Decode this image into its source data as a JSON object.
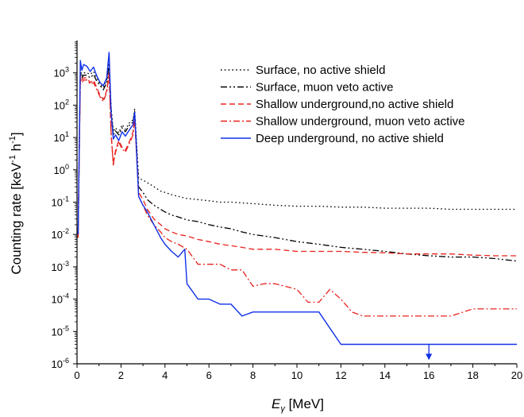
{
  "chart_data": {
    "type": "line",
    "title": "",
    "xlabel": {
      "main": "E",
      "sub": "γ",
      "unit": " [MeV]"
    },
    "ylabel": {
      "prefix": "Counting rate [keV",
      "sup1": "-1",
      "mid": " h",
      "sup2": "-1",
      "suffix": "]"
    },
    "xlim": [
      0,
      20
    ],
    "ylim": [
      1e-06,
      10000
    ],
    "y_scale": "log",
    "x_ticks": [
      0,
      2,
      4,
      6,
      8,
      10,
      12,
      14,
      16,
      18,
      20
    ],
    "x_tick_labels": [
      "0",
      "2",
      "4",
      "6",
      "8",
      "10",
      "12",
      "14",
      "16",
      "18",
      "20"
    ],
    "y_ticks": [
      {
        "value": 1e-06,
        "base": "10",
        "exp": "-6"
      },
      {
        "value": 1e-05,
        "base": "10",
        "exp": "-5"
      },
      {
        "value": 0.0001,
        "base": "10",
        "exp": "-4"
      },
      {
        "value": 0.001,
        "base": "10",
        "exp": "-3"
      },
      {
        "value": 0.01,
        "base": "10",
        "exp": "-2"
      },
      {
        "value": 0.1,
        "base": "10",
        "exp": "-1"
      },
      {
        "value": 1,
        "base": "10",
        "exp": "0"
      },
      {
        "value": 10,
        "base": "10",
        "exp": "1"
      },
      {
        "value": 100,
        "base": "10",
        "exp": "2"
      },
      {
        "value": 1000,
        "base": "10",
        "exp": "3"
      }
    ],
    "grid": false,
    "legend_position": "top-right",
    "series": [
      {
        "name": "Surface, no active shield",
        "color": "#000000",
        "dash": "dotted",
        "x": [
          0.05,
          0.15,
          0.22,
          0.3,
          0.45,
          0.6,
          0.75,
          0.9,
          1.05,
          1.2,
          1.35,
          1.46,
          1.55,
          1.65,
          1.75,
          1.9,
          2.05,
          2.2,
          2.4,
          2.55,
          2.62,
          2.66,
          2.8,
          3.0,
          3.2,
          3.5,
          3.8,
          4.0,
          4.3,
          4.6,
          5.0,
          5.5,
          6.0,
          6.5,
          7.0,
          7.5,
          8.0,
          8.5,
          9.0,
          10.0,
          11.0,
          12.0,
          13.0,
          14.0,
          15.0,
          16.0,
          17.0,
          18.0,
          19.0,
          20.0
        ],
        "y": [
          0.008,
          1300,
          800,
          1000,
          1000,
          900,
          1100,
          700,
          450,
          350,
          600,
          2000,
          90,
          15,
          20,
          14,
          25,
          18,
          30,
          35,
          75,
          25,
          0.55,
          0.48,
          0.4,
          0.3,
          0.22,
          0.2,
          0.17,
          0.15,
          0.13,
          0.12,
          0.11,
          0.1,
          0.1,
          0.095,
          0.09,
          0.085,
          0.08,
          0.075,
          0.075,
          0.07,
          0.07,
          0.065,
          0.065,
          0.065,
          0.06,
          0.06,
          0.06,
          0.06
        ]
      },
      {
        "name": "Surface, muon veto active",
        "color": "#000000",
        "dash": "dashdotdot",
        "x": [
          0.05,
          0.15,
          0.22,
          0.3,
          0.45,
          0.6,
          0.75,
          0.9,
          1.05,
          1.2,
          1.35,
          1.46,
          1.55,
          1.65,
          1.75,
          1.9,
          2.05,
          2.2,
          2.4,
          2.55,
          2.62,
          2.66,
          2.8,
          3.0,
          3.2,
          3.5,
          3.8,
          4.0,
          4.3,
          4.6,
          5.0,
          5.5,
          6.0,
          6.5,
          7.0,
          7.5,
          8.0,
          8.5,
          9.0,
          10.0,
          11.0,
          12.0,
          13.0,
          14.0,
          15.0,
          16.0,
          17.0,
          18.0,
          19.0,
          20.0
        ],
        "y": [
          0.01,
          1000,
          700,
          850,
          850,
          700,
          900,
          550,
          400,
          300,
          500,
          1700,
          80,
          12,
          16,
          12,
          20,
          15,
          25,
          30,
          65,
          20,
          0.3,
          0.2,
          0.12,
          0.08,
          0.06,
          0.05,
          0.04,
          0.035,
          0.028,
          0.025,
          0.02,
          0.017,
          0.015,
          0.012,
          0.01,
          0.009,
          0.008,
          0.006,
          0.005,
          0.004,
          0.0035,
          0.003,
          0.0025,
          0.0022,
          0.002,
          0.002,
          0.0018,
          0.0015
        ]
      },
      {
        "name": "Shallow underground,no active shield",
        "color": "#e8231e",
        "dash": "dashed",
        "x": [
          0.05,
          0.15,
          0.22,
          0.3,
          0.45,
          0.6,
          0.75,
          0.9,
          1.05,
          1.2,
          1.35,
          1.46,
          1.55,
          1.65,
          1.75,
          1.9,
          2.05,
          2.2,
          2.4,
          2.55,
          2.62,
          2.66,
          2.8,
          3.0,
          3.2,
          3.5,
          3.8,
          4.0,
          4.3,
          4.6,
          5.0,
          5.5,
          6.0,
          6.5,
          7.0,
          7.5,
          8.0,
          8.5,
          9.0,
          10.0,
          11.0,
          12.0,
          13.0,
          14.0,
          15.0,
          16.0,
          17.0,
          18.0,
          19.0,
          20.0
        ],
        "y": [
          0.008,
          800,
          600,
          700,
          700,
          500,
          600,
          350,
          200,
          150,
          280,
          1000,
          15,
          1.5,
          4,
          8,
          5,
          4,
          8,
          15,
          45,
          14,
          0.2,
          0.12,
          0.06,
          0.03,
          0.02,
          0.015,
          0.012,
          0.01,
          0.009,
          0.007,
          0.006,
          0.005,
          0.0045,
          0.004,
          0.0035,
          0.0035,
          0.0035,
          0.003,
          0.003,
          0.003,
          0.0028,
          0.0027,
          0.0025,
          0.0025,
          0.0025,
          0.0023,
          0.0022,
          0.0022
        ]
      },
      {
        "name": "Shallow underground, muon veto active",
        "color": "#e8231e",
        "dash": "dashdot",
        "x": [
          0.05,
          0.15,
          0.22,
          0.3,
          0.45,
          0.6,
          0.75,
          0.9,
          1.05,
          1.2,
          1.35,
          1.46,
          1.55,
          1.65,
          1.75,
          1.9,
          2.05,
          2.2,
          2.4,
          2.55,
          2.62,
          2.66,
          2.8,
          3.0,
          3.2,
          3.5,
          3.8,
          4.0,
          4.3,
          4.6,
          5.0,
          5.5,
          6.0,
          6.5,
          7.0,
          7.5,
          8.0,
          8.5,
          9.0,
          10.0,
          10.5,
          11.0,
          11.5,
          12.0,
          12.5,
          13.0,
          14.0,
          15.0,
          16.0,
          17.0,
          18.0,
          19.0,
          20.0
        ],
        "y": [
          0.008,
          700,
          500,
          600,
          600,
          450,
          500,
          300,
          180,
          130,
          250,
          900,
          13,
          1.4,
          3.5,
          7,
          4.5,
          3.5,
          7,
          12,
          40,
          12,
          0.15,
          0.08,
          0.04,
          0.02,
          0.012,
          0.008,
          0.006,
          0.005,
          0.0035,
          0.0012,
          0.0012,
          0.0012,
          0.0008,
          0.0008,
          0.00025,
          0.0003,
          0.0003,
          0.0002,
          8e-05,
          8e-05,
          0.0002,
          0.0001,
          4e-05,
          3e-05,
          3e-05,
          3e-05,
          3e-05,
          3e-05,
          5e-05,
          5e-05,
          5e-05
        ]
      },
      {
        "name": "Deep underground, no active shield",
        "color": "#1030e8",
        "dash": "solid",
        "x": [
          0.05,
          0.15,
          0.22,
          0.3,
          0.45,
          0.6,
          0.75,
          0.9,
          1.05,
          1.2,
          1.35,
          1.46,
          1.55,
          1.65,
          1.75,
          1.9,
          2.05,
          2.2,
          2.4,
          2.55,
          2.62,
          2.66,
          2.8,
          3.0,
          3.2,
          3.5,
          3.8,
          4.0,
          4.3,
          4.6,
          4.9,
          5.0,
          5.5,
          6.0,
          6.5,
          7.0,
          7.5,
          8.0,
          8.5,
          9.0,
          10.0,
          11.0,
          12.0,
          13.0,
          14.0,
          15.0,
          16.0,
          17.0,
          18.0,
          19.0,
          20.0
        ],
        "y": [
          0.01,
          2400,
          1200,
          1800,
          1600,
          1100,
          1500,
          800,
          500,
          400,
          700,
          4300,
          60,
          9,
          12,
          8,
          15,
          11,
          18,
          25,
          60,
          18,
          0.15,
          0.08,
          0.05,
          0.02,
          0.008,
          0.005,
          0.003,
          0.002,
          0.0035,
          0.0003,
          0.0001,
          0.0001,
          7e-05,
          7e-05,
          3e-05,
          4e-05,
          4e-05,
          4e-05,
          4e-05,
          4e-05,
          4e-06,
          4e-06,
          4e-06,
          4e-06,
          4e-06,
          4e-06,
          4e-06,
          4e-06,
          4e-06
        ]
      }
    ],
    "annotations": [
      {
        "type": "arrow-down",
        "x": 16,
        "y_from": 4e-06,
        "y_to": 1.3e-06,
        "color": "#1030e8"
      }
    ]
  }
}
